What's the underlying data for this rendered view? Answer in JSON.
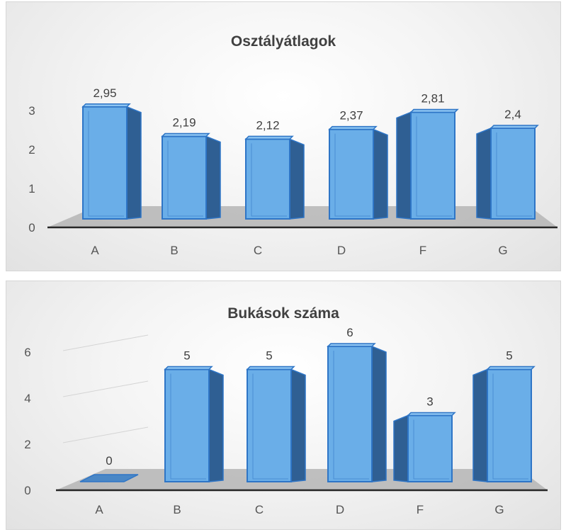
{
  "chart_data": [
    {
      "type": "bar",
      "title": "Osztályátlagok",
      "categories": [
        "A",
        "B",
        "C",
        "D",
        "F",
        "G"
      ],
      "values": [
        2.95,
        2.19,
        2.12,
        2.37,
        2.81,
        2.4
      ],
      "data_labels": [
        "2,95",
        "2,19",
        "2,12",
        "2,37",
        "2,81",
        "2,4"
      ],
      "y_ticks": [
        "0",
        "1",
        "2",
        "3"
      ],
      "ylim": [
        0,
        3
      ],
      "xlabel": "",
      "ylabel": "",
      "grid": false,
      "style": "3d-column"
    },
    {
      "type": "bar",
      "title": "Bukások száma",
      "categories": [
        "A",
        "B",
        "C",
        "D",
        "F",
        "G"
      ],
      "values": [
        0,
        5,
        5,
        6,
        3,
        5
      ],
      "data_labels": [
        "0",
        "5",
        "5",
        "6",
        "3",
        "5"
      ],
      "y_ticks": [
        "0",
        "2",
        "4",
        "6"
      ],
      "ylim": [
        0,
        6
      ],
      "xlabel": "",
      "ylabel": "",
      "grid": true,
      "style": "3d-column"
    }
  ],
  "colors": {
    "bar_front": "#6aaee8",
    "bar_edge": "#2e75c6",
    "bar_side": "#2f5f93",
    "bar_top": "#8cc4f2",
    "floor": "#b5b5b5",
    "axis": "#262626",
    "text": "#404040"
  }
}
